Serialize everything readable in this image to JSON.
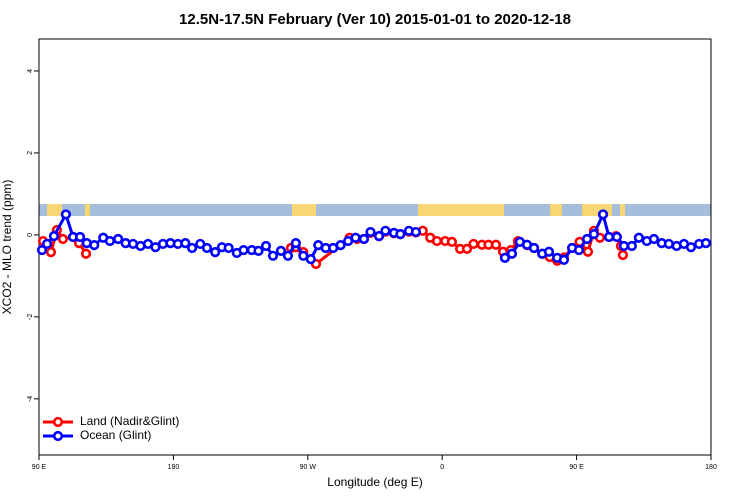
{
  "chart_data": {
    "type": "line",
    "title": "12.5N-17.5N February (Ver 10)   2015-01-01 to 2020-12-18",
    "x_label": "Longitude (deg E)",
    "y_label": "XCO2 - MLO trend (ppm)",
    "xlim": [
      90,
      540
    ],
    "ylim": [
      -5.37,
      4.78
    ],
    "xticks": [
      {
        "value": 90,
        "label": "90 E"
      },
      180,
      {
        "value": 270,
        "label": "90 W"
      },
      {
        "value": 360,
        "label": "0"
      },
      {
        "value": 450,
        "label": "90 E"
      },
      {
        "value": 540,
        "label": "180"
      }
    ],
    "yticks": [
      -4,
      -2,
      0,
      2,
      4
    ],
    "legend": "bottom-left",
    "series": [
      {
        "name": "Land (Nadir&Glint)",
        "color": "#ff0000",
        "x": [
          92.7,
          95.4,
          98,
          102,
          106,
          112.8,
          116.8,
          121.5,
          200,
          258.7,
          262,
          267,
          275.5,
          298,
          303,
          307.6,
          312,
          317.7,
          322,
          327.7,
          332,
          337.7,
          342.4,
          347,
          352,
          356.5,
          362,
          366.5,
          372,
          376.6,
          381,
          386.6,
          391,
          396,
          400.7,
          406,
          410.7,
          416.8,
          421.5,
          427,
          432,
          437,
          441.5,
          447,
          452,
          457.6,
          461.6,
          465.6,
          471.7,
          476.4,
          479.7,
          481
        ],
        "values": [
          -0.15,
          -0.22,
          -0.42,
          0.12,
          -0.1,
          -0.05,
          -0.2,
          -0.46,
          null,
          -0.32,
          -0.3,
          -0.42,
          -0.71,
          -0.07,
          -0.1,
          -0.1,
          0.05,
          -0.03,
          0.08,
          0.04,
          0.02,
          0.08,
          0.06,
          0.1,
          -0.07,
          -0.15,
          -0.15,
          -0.17,
          -0.34,
          -0.34,
          -0.22,
          -0.24,
          -0.24,
          -0.24,
          -0.41,
          -0.37,
          -0.15,
          -0.25,
          -0.32,
          -0.46,
          -0.54,
          -0.63,
          -0.55,
          -0.32,
          -0.17,
          -0.41,
          0.1,
          -0.07,
          -0.05,
          -0.03,
          -0.27,
          -0.49
        ]
      },
      {
        "name": "Ocean (Glint)",
        "color": "#0000ff",
        "x": [
          92,
          95.4,
          100,
          108,
          112.8,
          117.5,
          122,
          127,
          133,
          137.5,
          143,
          148,
          153,
          158,
          163,
          168,
          173,
          178,
          183,
          188,
          192.5,
          198,
          202.5,
          208,
          212.5,
          217,
          222.5,
          227,
          232.5,
          237,
          242,
          246.7,
          252,
          256.7,
          262,
          267,
          272,
          277,
          282,
          287,
          292,
          297,
          302,
          307.6,
          312,
          317.7,
          322,
          327.7,
          332,
          337.7,
          342.4,
          372,
          402,
          406.7,
          412,
          416.8,
          421.5,
          427,
          431.5,
          437,
          441.5,
          447,
          451.6,
          457,
          461.6,
          467.7,
          471.7,
          477,
          481.7,
          487,
          491.7,
          497,
          501.8,
          507,
          511.8,
          517,
          521.9,
          526.6,
          532,
          536.6
        ],
        "values": [
          -0.37,
          -0.22,
          -0.03,
          0.5,
          -0.05,
          -0.05,
          -0.2,
          -0.25,
          -0.07,
          -0.15,
          -0.1,
          -0.2,
          -0.22,
          -0.27,
          -0.22,
          -0.3,
          -0.22,
          -0.2,
          -0.22,
          -0.2,
          -0.32,
          -0.22,
          -0.32,
          -0.42,
          -0.3,
          -0.32,
          -0.44,
          -0.37,
          -0.37,
          -0.39,
          -0.27,
          -0.51,
          -0.39,
          -0.51,
          -0.2,
          -0.51,
          -0.59,
          -0.25,
          -0.32,
          -0.32,
          -0.25,
          -0.15,
          -0.07,
          -0.1,
          0.07,
          -0.03,
          0.1,
          0.05,
          0.02,
          0.1,
          0.07,
          null,
          -0.56,
          -0.46,
          -0.17,
          -0.24,
          -0.32,
          -0.46,
          -0.41,
          -0.56,
          -0.61,
          -0.32,
          -0.37,
          -0.1,
          0.02,
          0.5,
          -0.05,
          -0.05,
          -0.27,
          -0.27,
          -0.07,
          -0.15,
          -0.1,
          -0.2,
          -0.22,
          -0.27,
          -0.22,
          -0.3,
          -0.22,
          -0.2
        ]
      }
    ]
  }
}
